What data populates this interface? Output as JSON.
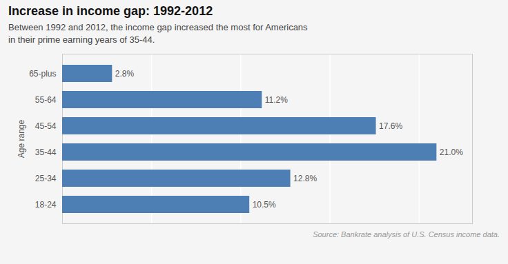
{
  "chart_data": {
    "type": "bar",
    "orientation": "horizontal",
    "title": "Increase in income gap: 1992-2012",
    "subtitle": "Between 1992 and 2012, the income gap increased the most for Americans\nin their prime earning years of 35-44.",
    "source": "Source: Bankrate analysis of U.S. Census income  data.",
    "y_label": "Age range",
    "categories": [
      "18-24",
      "25-34",
      "35-44",
      "45-54",
      "55-64",
      "65-plus"
    ],
    "values": [
      10.5,
      12.8,
      21.0,
      17.6,
      11.2,
      2.8
    ],
    "value_labels": [
      "10.5%",
      "12.8%",
      "21.0%",
      "17.6%",
      "11.2%",
      "2.8%"
    ],
    "data_labels": true,
    "color": "#4d7fb5",
    "xlim": [
      0,
      23
    ],
    "xticks": [
      0,
      5,
      10,
      15,
      20
    ],
    "grid": true,
    "tick_labels": "y"
  }
}
